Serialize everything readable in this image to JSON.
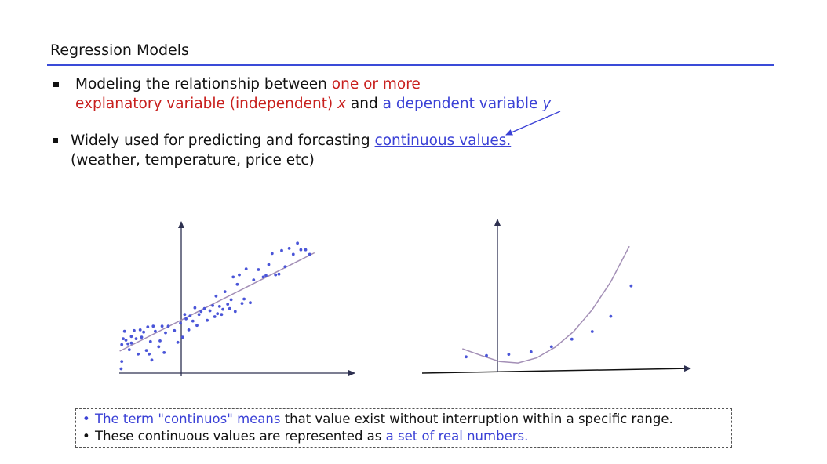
{
  "slide": {
    "title": "Regression Models"
  },
  "bullets": [
    {
      "line1_a": "Modeling the relationship between ",
      "line1_b": "one or more",
      "line2_a": "explanatory variable (independent) ",
      "line2_x": "x",
      "line2_and": " and ",
      "line2_b": "a dependent variable ",
      "line2_y": "y"
    },
    {
      "line1_a": "Widely used for predicting and forcasting ",
      "line1_link": "continuous values.",
      "line2": "(weather, temperature, price etc)"
    }
  ],
  "notes": [
    {
      "bullet": "•",
      "highlight": "The term \"continuos\" means",
      "rest": " that value exist without interruption within a specific range."
    },
    {
      "bullet": "•",
      "text": "These continuous values are represented as ",
      "highlight": "a set of real numbers."
    }
  ],
  "colors": {
    "red": "#c8201e",
    "blue": "#3b41d6",
    "rule": "#3a4bd8",
    "axis": "#2d3050",
    "fit_line": "#a38fb6",
    "points": "#4a55d8"
  },
  "chart_data": [
    {
      "type": "scatter",
      "title": "",
      "xlabel": "",
      "ylabel": "",
      "fit": "linear",
      "xlim": [
        -8,
        23
      ],
      "ylim": [
        -1,
        18
      ],
      "fit_line": {
        "x": [
          -7.7,
          20.8
        ],
        "y": [
          2.2,
          15.6
        ]
      },
      "points": [
        [
          -7.5,
          -0.2
        ],
        [
          -7.4,
          0.8
        ],
        [
          -7.4,
          3.1
        ],
        [
          -7.2,
          3.9
        ],
        [
          -7.0,
          4.9
        ],
        [
          -6.8,
          3.7
        ],
        [
          -6.5,
          3.2
        ],
        [
          -6.3,
          2.4
        ],
        [
          -6.0,
          4.2
        ],
        [
          -6.0,
          3.3
        ],
        [
          -5.6,
          5.0
        ],
        [
          -5.3,
          3.9
        ],
        [
          -5.0,
          1.8
        ],
        [
          -4.7,
          5.1
        ],
        [
          -4.5,
          4.1
        ],
        [
          -4.2,
          4.8
        ],
        [
          -3.8,
          2.3
        ],
        [
          -3.6,
          5.5
        ],
        [
          -3.4,
          1.8
        ],
        [
          -3.2,
          3.5
        ],
        [
          -3.0,
          1.0
        ],
        [
          -2.8,
          5.6
        ],
        [
          -2.5,
          4.9
        ],
        [
          -2.0,
          2.8
        ],
        [
          -1.8,
          3.6
        ],
        [
          -1.5,
          5.6
        ],
        [
          -1.2,
          2.0
        ],
        [
          -1.0,
          4.7
        ],
        [
          -0.6,
          5.6
        ],
        [
          0.3,
          5.0
        ],
        [
          0.8,
          3.4
        ],
        [
          1.2,
          6.0
        ],
        [
          1.5,
          4.1
        ],
        [
          1.8,
          7.2
        ],
        [
          2.0,
          6.6
        ],
        [
          2.4,
          5.1
        ],
        [
          2.6,
          7.0
        ],
        [
          3.0,
          6.3
        ],
        [
          3.3,
          8.1
        ],
        [
          3.6,
          5.7
        ],
        [
          3.9,
          7.2
        ],
        [
          4.2,
          7.6
        ],
        [
          4.7,
          8.0
        ],
        [
          5.1,
          6.4
        ],
        [
          5.5,
          7.7
        ],
        [
          5.9,
          8.4
        ],
        [
          6.2,
          6.9
        ],
        [
          6.4,
          9.7
        ],
        [
          6.6,
          7.3
        ],
        [
          6.9,
          8.3
        ],
        [
          7.2,
          7.2
        ],
        [
          7.4,
          7.9
        ],
        [
          7.7,
          10.3
        ],
        [
          8.1,
          8.6
        ],
        [
          8.4,
          8.0
        ],
        [
          8.6,
          9.2
        ],
        [
          8.9,
          12.3
        ],
        [
          9.2,
          7.6
        ],
        [
          9.5,
          11.3
        ],
        [
          9.8,
          12.6
        ],
        [
          10.2,
          8.7
        ],
        [
          10.5,
          9.3
        ],
        [
          10.8,
          13.4
        ],
        [
          11.4,
          8.8
        ],
        [
          11.9,
          11.9
        ],
        [
          12.6,
          13.3
        ],
        [
          13.3,
          12.3
        ],
        [
          13.7,
          12.5
        ],
        [
          14.1,
          14.0
        ],
        [
          14.6,
          15.5
        ],
        [
          15.1,
          12.6
        ],
        [
          15.6,
          12.7
        ],
        [
          16.0,
          15.9
        ],
        [
          16.5,
          13.7
        ],
        [
          17.1,
          16.2
        ],
        [
          17.7,
          15.4
        ],
        [
          18.3,
          16.9
        ],
        [
          18.8,
          16.0
        ],
        [
          19.5,
          16.0
        ],
        [
          20.1,
          15.4
        ]
      ]
    },
    {
      "type": "scatter",
      "title": "",
      "xlabel": "",
      "ylabel": "",
      "fit": "curve",
      "xlim": [
        -4,
        10
      ],
      "ylim": [
        -0.3,
        5.2
      ],
      "fit_line": {
        "x": [
          -2.0,
          -1.0,
          0.0,
          1.0,
          2.0,
          3.0,
          4.0,
          5.0,
          6.0,
          7.0,
          7.0
        ],
        "y": [
          0.72,
          0.46,
          0.22,
          0.16,
          0.36,
          0.78,
          1.4,
          2.26,
          3.36,
          4.76,
          4.76
        ]
      },
      "points": [
        [
          -1.8,
          0.4
        ],
        [
          -0.7,
          0.45
        ],
        [
          0.5,
          0.5
        ],
        [
          1.7,
          0.6
        ],
        [
          2.8,
          0.8
        ],
        [
          3.9,
          1.1
        ],
        [
          5.0,
          1.4
        ],
        [
          6.0,
          2.0
        ],
        [
          7.1,
          3.2
        ]
      ]
    }
  ]
}
